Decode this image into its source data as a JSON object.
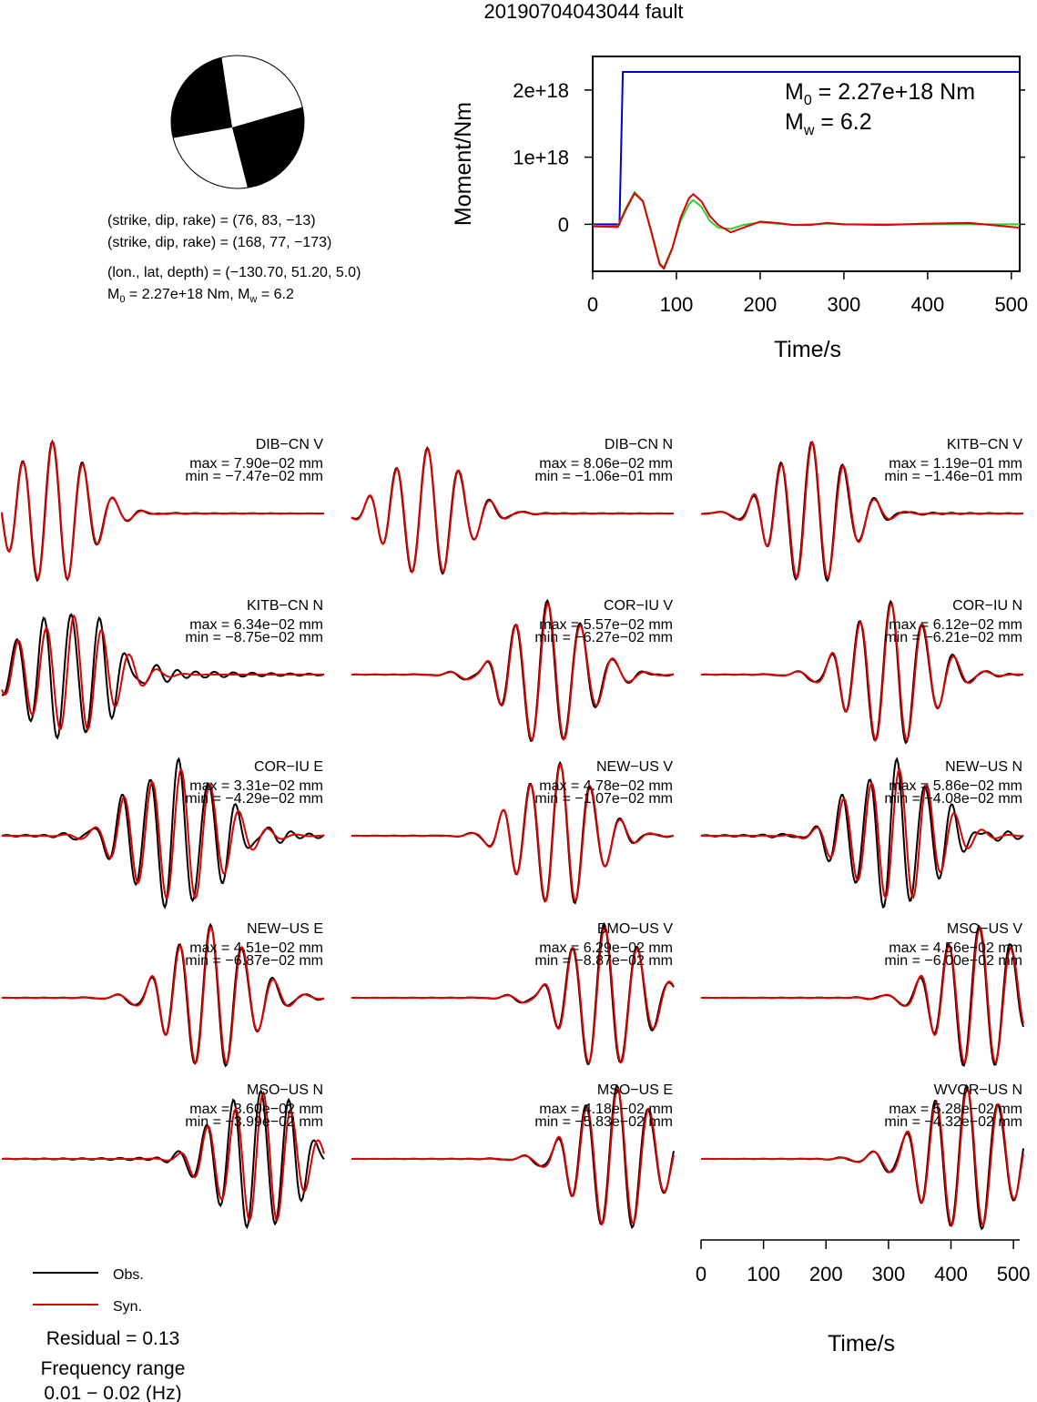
{
  "title": "20190704043044 fault",
  "mechanism": {
    "line1": "(strike, dip, rake) = (76, 83, −13)",
    "line2": "(strike, dip, rake) = (168, 77, −173)",
    "line3": "(lon., lat, depth) = (−130.70, 51.20, 5.0)",
    "m0_prefix": "M",
    "m0_sub": "0",
    "m0_rest": " = 2.27e+18 Nm, M",
    "mw_sub": "w",
    "mw_rest": " = 6.2"
  },
  "moment_panel": {
    "m0_label": "M",
    "m0_sub": "0",
    "m0_value": " = 2.27e+18 Nm",
    "mw_label": "M",
    "mw_sub": "w",
    "mw_value": " = 6.2"
  },
  "legend": {
    "obs_label": "Obs.",
    "syn_label": "Syn.",
    "residual": "Residual = 0.13",
    "freq_title": "Frequency range",
    "freq_value": "0.01 − 0.02 (Hz)"
  },
  "colors": {
    "obs": "#000000",
    "syn": "#e00000",
    "moment_cumulative": "#0000cc",
    "moment_rate_obs": "#33cc33",
    "moment_rate_syn": "#e00000"
  },
  "chart_data": [
    {
      "type": "line",
      "xlabel": "Time/s",
      "ylabel": "Moment/Nm",
      "xlim": [
        0,
        510
      ],
      "ylim": [
        -7e+17,
        2.5e+18
      ],
      "xticks": [
        0,
        100,
        200,
        300,
        400,
        500
      ],
      "xtick_labels": [
        "0",
        "100",
        "200",
        "300",
        "400",
        "500"
      ],
      "yticks": [
        0,
        1e+18,
        2e+18
      ],
      "ytick_labels": [
        "0",
        "1e+18",
        "2e+18"
      ],
      "series": [
        {
          "color": "#0000cc",
          "x": [
            0,
            32,
            36,
            510
          ],
          "y": [
            0,
            0,
            2.27e+18,
            2.27e+18
          ]
        },
        {
          "color": "#33cc33",
          "x": [
            0,
            30,
            40,
            50,
            60,
            70,
            80,
            85,
            95,
            105,
            115,
            120,
            130,
            140,
            150,
            165,
            180,
            200,
            220,
            240,
            260,
            280,
            300,
            350,
            400,
            450,
            510
          ],
          "y": [
            -2e+16,
            -3e+16,
            2.5e+17,
            4.8e+17,
            3.5e+17,
            -1e+17,
            -5.8e+17,
            -6.4e+17,
            -3.5e+17,
            5e+16,
            3e+17,
            3.6e+17,
            2.6e+17,
            5e+16,
            -5e+16,
            -7e+16,
            -1e+16,
            3e+16,
            1e+16,
            -1e+16,
            0,
            1e+16,
            0,
            0,
            0,
            0,
            0
          ]
        },
        {
          "color": "#e00000",
          "x": [
            0,
            30,
            40,
            50,
            60,
            70,
            80,
            85,
            95,
            105,
            115,
            120,
            130,
            140,
            150,
            165,
            180,
            200,
            220,
            240,
            260,
            280,
            300,
            350,
            400,
            450,
            510
          ],
          "y": [
            -3e+16,
            -4e+16,
            2.3e+17,
            4.6e+17,
            3.4e+17,
            -1.2e+17,
            -6e+17,
            -6.6e+17,
            -3.6e+17,
            1e+17,
            3.9e+17,
            4.5e+17,
            3.4e+17,
            1.2e+17,
            -1e+16,
            -1.2e+17,
            -5e+16,
            4e+16,
            2e+16,
            -1e+16,
            -1e+16,
            2e+16,
            0,
            -1e+16,
            1e+16,
            2e+16,
            -5e+16
          ]
        }
      ]
    },
    {
      "type": "line",
      "name": "waveforms",
      "xlabel": "Time/s",
      "xlim": [
        0,
        510
      ],
      "xticks": [
        0,
        100,
        200,
        300,
        400,
        500
      ],
      "xtick_labels": [
        "0",
        "100",
        "200",
        "300",
        "400",
        "500"
      ],
      "traces": [
        {
          "station": "DIB−CN V",
          "max": "max = 7.90e−02 mm",
          "min": "min = −7.47e−02 mm",
          "t0": 80,
          "amp": 1.0,
          "period": 48,
          "width": 55,
          "mis": 0.05
        },
        {
          "station": "DIB−CN N",
          "max": "max = 8.06e−02 mm",
          "min": "min = −1.06e−01 mm",
          "t0": 120,
          "amp": 0.9,
          "period": 50,
          "width": 55,
          "mis": 0.05
        },
        {
          "station": "KITB−CN V",
          "max": "max = 1.19e−01 mm",
          "min": "min = −1.46e−01 mm",
          "t0": 175,
          "amp": 1.0,
          "period": 50,
          "width": 55,
          "mis": 0.08
        },
        {
          "station": "KITB−CN N",
          "max": "max = 6.34e−02 mm",
          "min": "min = −8.75e−02 mm",
          "t0": 110,
          "amp": 0.9,
          "period": 44,
          "width": 60,
          "mis": 0.35
        },
        {
          "station": "COR−IU V",
          "max": "max = 5.57e−02 mm",
          "min": "min = −6.27e−02 mm",
          "t0": 310,
          "amp": 1.0,
          "period": 52,
          "width": 60,
          "mis": 0.08
        },
        {
          "station": "COR−IU N",
          "max": "max = 6.12e−02 mm",
          "min": "min = −6.21e−02 mm",
          "t0": 300,
          "amp": 1.0,
          "period": 50,
          "width": 60,
          "mis": 0.08
        },
        {
          "station": "COR−IU E",
          "max": "max = 3.31e−02 mm",
          "min": "min = −4.29e−02 mm",
          "t0": 280,
          "amp": 1.0,
          "period": 46,
          "width": 65,
          "mis": 0.3
        },
        {
          "station": "NEW−US V",
          "max": "max = 4.78e−02 mm",
          "min": "min = −1.07e−02 mm",
          "t0": 330,
          "amp": 1.0,
          "period": 48,
          "width": 55,
          "mis": 0.06
        },
        {
          "station": "NEW−US N",
          "max": "max = 5.86e−02 mm",
          "min": "min = −4.08e−02 mm",
          "t0": 310,
          "amp": 1.0,
          "period": 44,
          "width": 60,
          "mis": 0.3
        },
        {
          "station": "NEW−US E",
          "max": "max = 4.51e−02 mm",
          "min": "min = −6.87e−02 mm",
          "t0": 330,
          "amp": 1.0,
          "period": 50,
          "width": 60,
          "mis": 0.08
        },
        {
          "station": "BMO−US V",
          "max": "max = 6.29e−02 mm",
          "min": "min = −8.87e−02 mm",
          "t0": 400,
          "amp": 1.0,
          "period": 52,
          "width": 60,
          "mis": 0.08
        },
        {
          "station": "MSO−US V",
          "max": "max = 4.56e−02 mm",
          "min": "min = −6.00e−02 mm",
          "t0": 440,
          "amp": 1.0,
          "period": 50,
          "width": 60,
          "mis": 0.1
        },
        {
          "station": "MSO−US N",
          "max": "max = 3.60e−02 mm",
          "min": "min = −3.99e−02 mm",
          "t0": 410,
          "amp": 1.0,
          "period": 44,
          "width": 55,
          "mis": 0.3
        },
        {
          "station": "MSO−US E",
          "max": "max = 4.18e−02 mm",
          "min": "min = −5.83e−02 mm",
          "t0": 420,
          "amp": 1.0,
          "period": 50,
          "width": 60,
          "mis": 0.1
        },
        {
          "station": "WVOR−US N",
          "max": "max = 5.28e−02 mm",
          "min": "min = −4.32e−02 mm",
          "t0": 420,
          "amp": 1.0,
          "period": 50,
          "width": 70,
          "mis": 0.1
        }
      ]
    }
  ]
}
